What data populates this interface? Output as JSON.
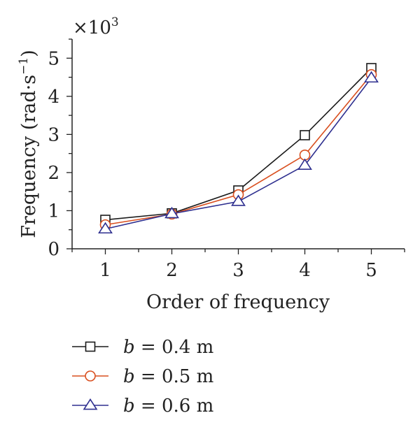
{
  "chart_data": {
    "type": "line",
    "title": "",
    "multiplier_label": "×10",
    "multiplier_exponent": "3",
    "xlabel": "Order of frequency",
    "ylabel": "Frequency (rad·s",
    "ylabel_exponent": "−1",
    "ylabel_suffix": ")",
    "x": [
      1,
      2,
      3,
      4,
      5
    ],
    "xlim": [
      0.5,
      5.5
    ],
    "ylim": [
      0,
      5.5
    ],
    "x_ticks": [
      "1",
      "2",
      "3",
      "4",
      "5"
    ],
    "y_ticks": [
      "0",
      "1",
      "2",
      "3",
      "4",
      "5"
    ],
    "grid": false,
    "legend_position": "bottom-left",
    "series": [
      {
        "name": "b = 0.4 m",
        "legend_var": "b",
        "legend_rest": " = 0.4 m",
        "values": [
          0.76,
          0.93,
          1.53,
          2.98,
          4.74
        ],
        "color": "#1a1a1a",
        "marker": "square"
      },
      {
        "name": "b = 0.5 m",
        "legend_var": "b",
        "legend_rest": " = 0.5 m",
        "values": [
          0.63,
          0.91,
          1.42,
          2.46,
          4.57
        ],
        "color": "#d94f1f",
        "marker": "circle"
      },
      {
        "name": "b = 0.6 m",
        "legend_var": "b",
        "legend_rest": " = 0.6 m",
        "values": [
          0.52,
          0.92,
          1.24,
          2.19,
          4.48
        ],
        "color": "#2e2f8f",
        "marker": "triangle"
      }
    ]
  }
}
